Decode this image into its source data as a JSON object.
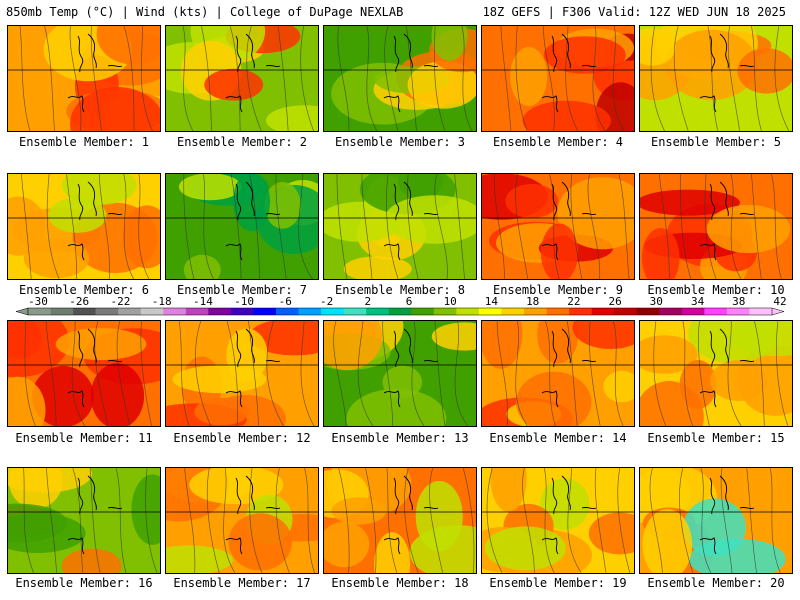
{
  "header": {
    "left": "850mb Temp (°C) | Wind (kts) | College of DuPage NEXLAB",
    "right": "18Z GEFS | F306 Valid: 12Z WED JUN 18 2025"
  },
  "colorbar": {
    "ticks": [
      "-30",
      "-26",
      "-22",
      "-18",
      "-14",
      "-10",
      "-6",
      "-2",
      "2",
      "6",
      "10",
      "14",
      "18",
      "22",
      "26",
      "30",
      "34",
      "38",
      "42"
    ],
    "colors": [
      "#8a9a8a",
      "#6e7e6e",
      "#525252",
      "#7a7a7a",
      "#a0a0a0",
      "#c8c8c8",
      "#e080e0",
      "#c040c0",
      "#8000a0",
      "#4000c0",
      "#0000ff",
      "#0060ff",
      "#00a0ff",
      "#00e0ff",
      "#40e0c0",
      "#00c080",
      "#00a040",
      "#40a000",
      "#80c000",
      "#c0e000",
      "#ffff00",
      "#ffd000",
      "#ffa000",
      "#ff7000",
      "#ff3000",
      "#e00000",
      "#c00000",
      "#900000",
      "#a00060",
      "#d000a0",
      "#ff40ff",
      "#ff80ff",
      "#ffc0ff"
    ]
  },
  "panels": [
    {
      "label": "Ensemble Member: 1",
      "palette": [
        "#ffa000",
        "#ff7000",
        "#ff3000",
        "#ffd000"
      ]
    },
    {
      "label": "Ensemble Member: 2",
      "palette": [
        "#80c000",
        "#c0e000",
        "#ffd000",
        "#ff3000"
      ]
    },
    {
      "label": "Ensemble Member: 3",
      "palette": [
        "#40a000",
        "#80c000",
        "#ffd000",
        "#ff7000"
      ]
    },
    {
      "label": "Ensemble Member: 4",
      "palette": [
        "#ff7000",
        "#ff3000",
        "#c00000",
        "#ffa000"
      ]
    },
    {
      "label": "Ensemble Member: 5",
      "palette": [
        "#c0e000",
        "#ffd000",
        "#ffa000",
        "#ff7000"
      ]
    },
    {
      "label": "Ensemble Member: 6",
      "palette": [
        "#ffd000",
        "#ffa000",
        "#ff7000",
        "#c0e000"
      ]
    },
    {
      "label": "Ensemble Member: 7",
      "palette": [
        "#40a000",
        "#00a040",
        "#80c000",
        "#c0e000"
      ]
    },
    {
      "label": "Ensemble Member: 8",
      "palette": [
        "#80c000",
        "#c0e000",
        "#ffd000",
        "#40a000"
      ]
    },
    {
      "label": "Ensemble Member: 9",
      "palette": [
        "#ff7000",
        "#ff3000",
        "#e00000",
        "#ffa000"
      ]
    },
    {
      "label": "Ensemble Member: 10",
      "palette": [
        "#ff7000",
        "#ff3000",
        "#e00000",
        "#ffa000"
      ]
    },
    {
      "label": "Ensemble Member: 11",
      "palette": [
        "#ff7000",
        "#ff3000",
        "#e00000",
        "#ffa000"
      ]
    },
    {
      "label": "Ensemble Member: 12",
      "palette": [
        "#ffa000",
        "#ff7000",
        "#ff3000",
        "#ffd000"
      ]
    },
    {
      "label": "Ensemble Member: 13",
      "palette": [
        "#40a000",
        "#80c000",
        "#ffd000",
        "#ffa000"
      ]
    },
    {
      "label": "Ensemble Member: 14",
      "palette": [
        "#ffa000",
        "#ff7000",
        "#ff3000",
        "#ffd000"
      ]
    },
    {
      "label": "Ensemble Member: 15",
      "palette": [
        "#ffd000",
        "#ffa000",
        "#ff7000",
        "#c0e000"
      ]
    },
    {
      "label": "Ensemble Member: 16",
      "palette": [
        "#80c000",
        "#40a000",
        "#ffd000",
        "#ff7000"
      ]
    },
    {
      "label": "Ensemble Member: 17",
      "palette": [
        "#ffa000",
        "#ff7000",
        "#ffd000",
        "#c0e000"
      ]
    },
    {
      "label": "Ensemble Member: 18",
      "palette": [
        "#ff7000",
        "#ffa000",
        "#ffd000",
        "#c0e000"
      ]
    },
    {
      "label": "Ensemble Member: 19",
      "palette": [
        "#ffd000",
        "#ffa000",
        "#c0e000",
        "#ff7000"
      ]
    },
    {
      "label": "Ensemble Member: 20",
      "palette": [
        "#ffa000",
        "#ffd000",
        "#ff7000",
        "#40e0c0"
      ]
    }
  ]
}
